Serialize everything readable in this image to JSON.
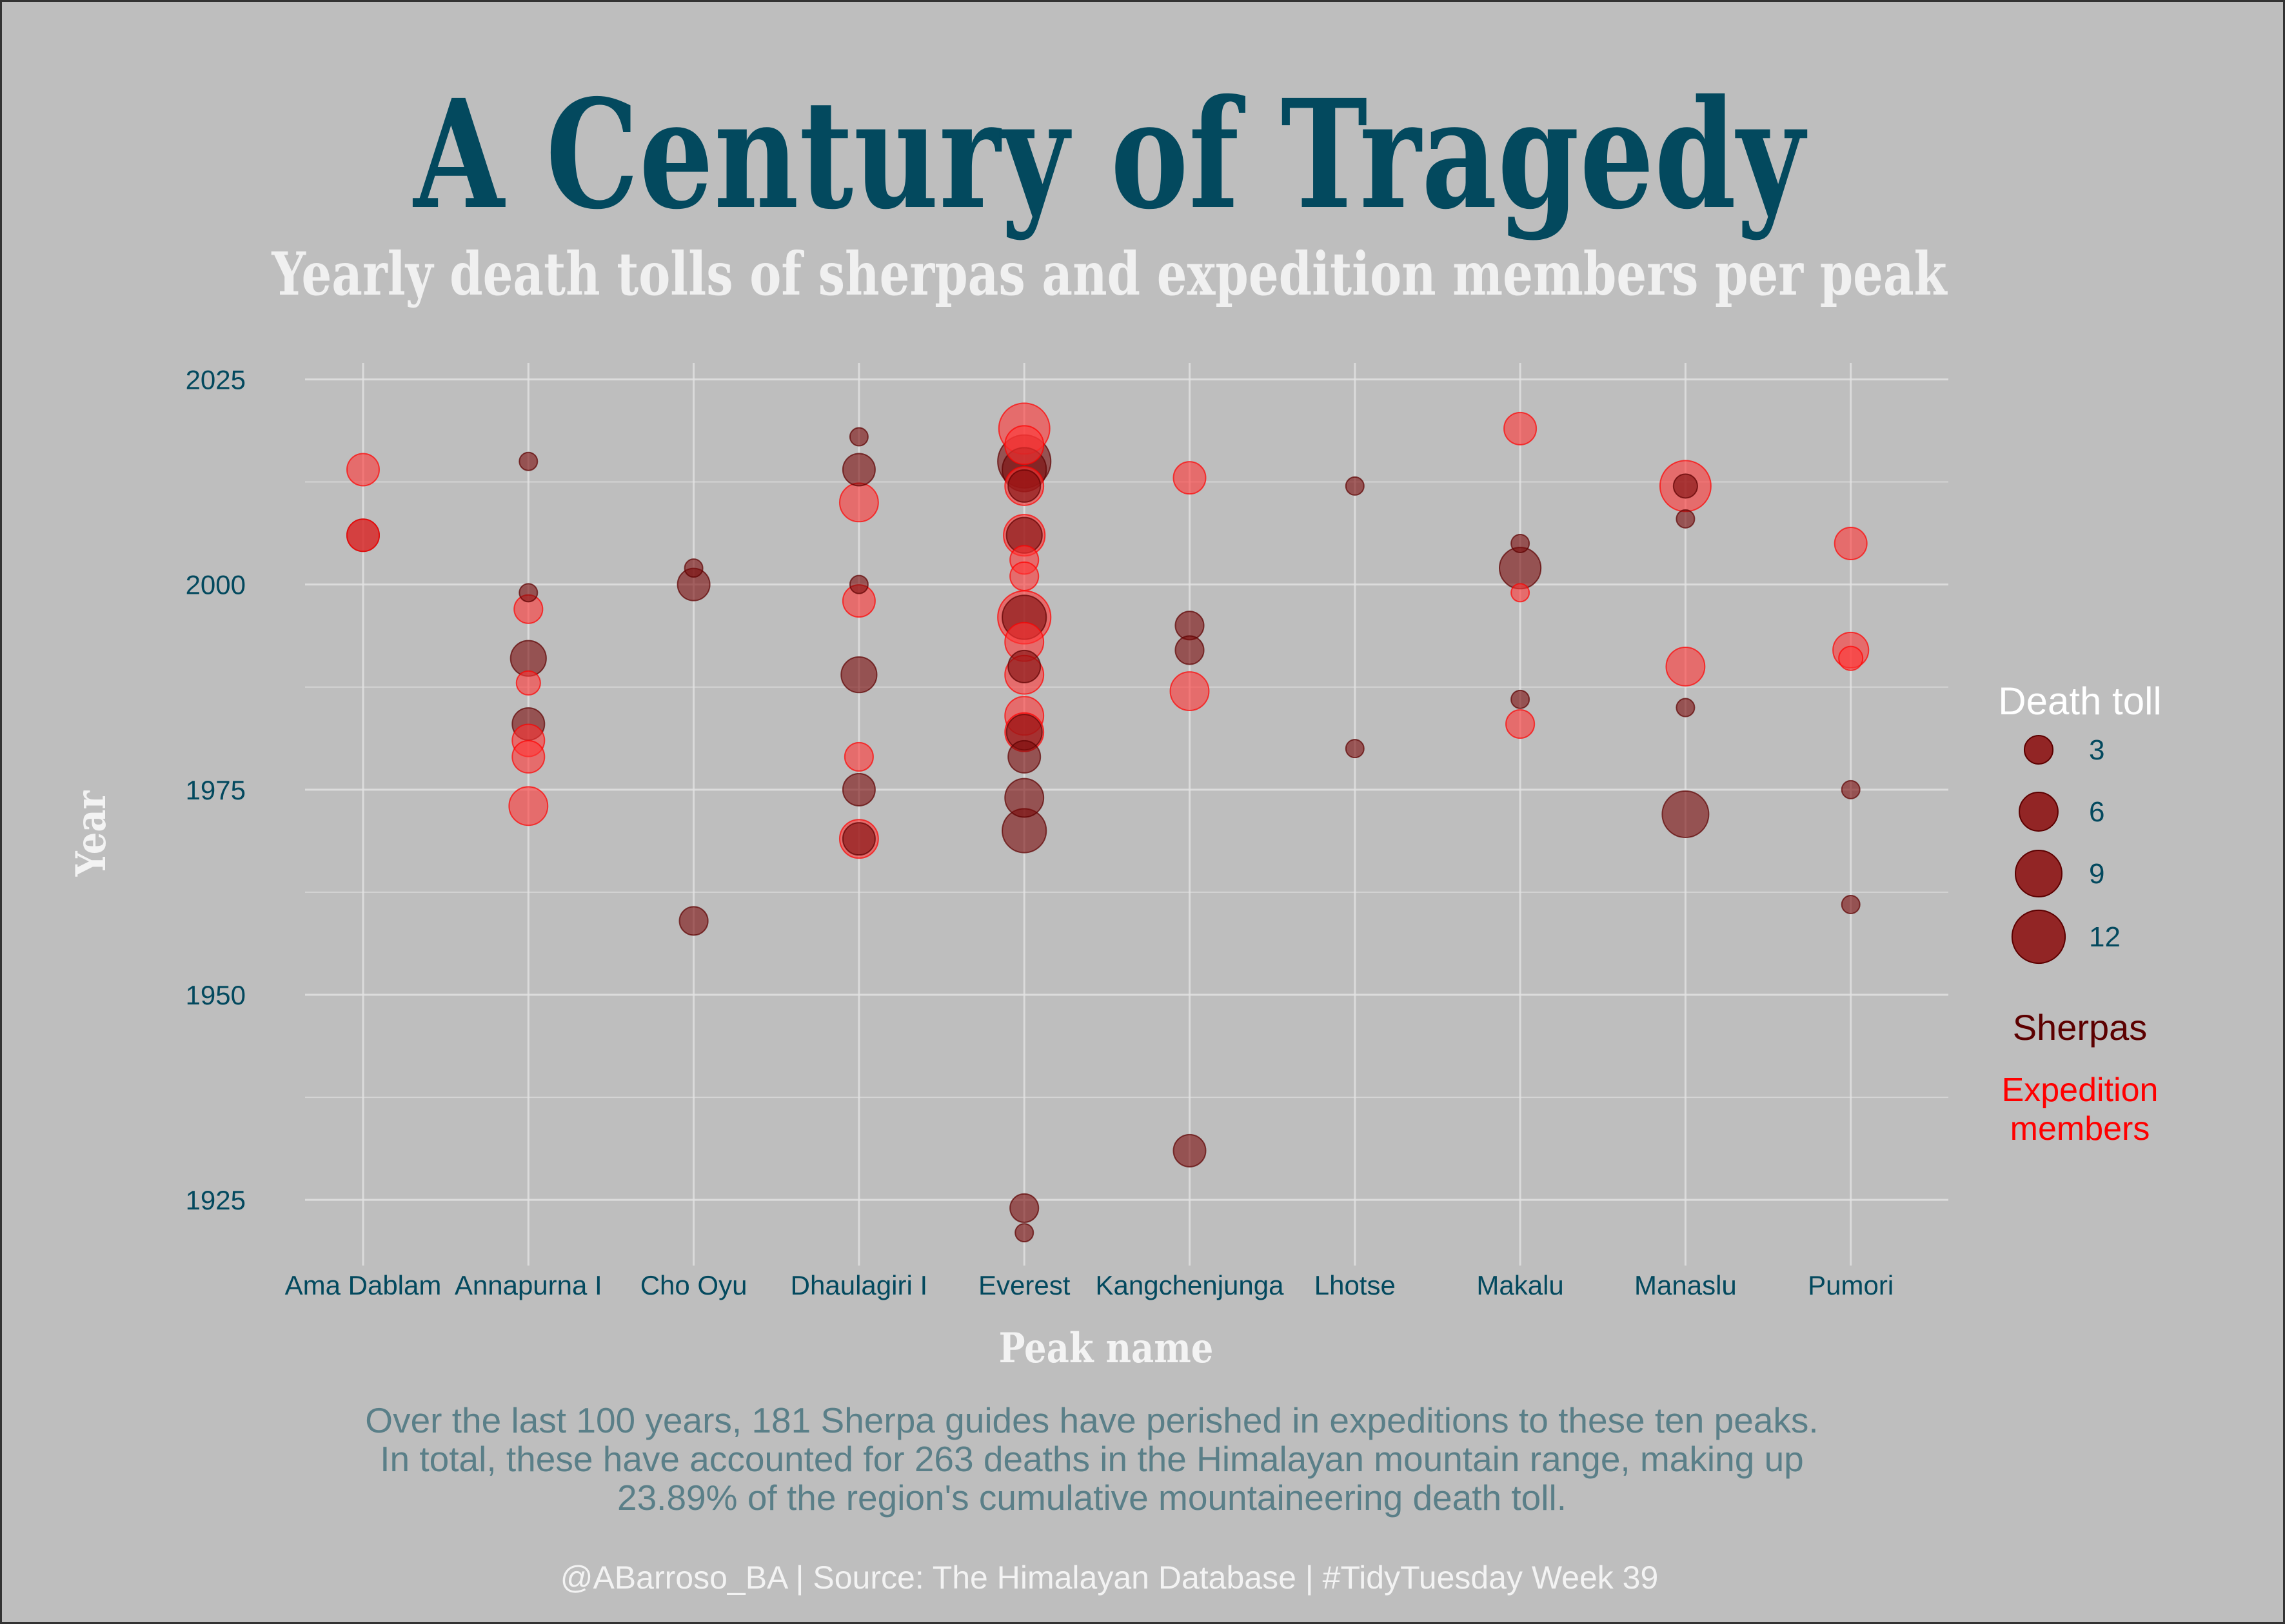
{
  "title": "A Century of Tragedy",
  "subtitle": "Yearly death tolls of sherpas and expedition members per peak",
  "caption": "Over the last 100 years, 181 Sherpa guides have perished in expeditions to these ten peaks. In total, these have accounted for 263 deaths in the Himalayan mountain range, making up 23.89% of the region's cumulative mountaineering death toll.",
  "credit": "@ABarroso_BA | Source: The Himalayan Database | #TidyTuesday Week 39",
  "colors": {
    "sherpa": "#5c0000",
    "sherpa_fill": "#7a0a0a",
    "expedition": "#ff0000",
    "expedition_fill": "#ff3535",
    "title": "#03495e",
    "background": "#bebebe"
  },
  "chart_data": {
    "type": "scatter",
    "xlabel": "Peak name",
    "ylabel": "Year",
    "categories": [
      "Ama Dablam",
      "Annapurna I",
      "Cho Oyu",
      "Dhaulagiri I",
      "Everest",
      "Kangchenjunga",
      "Lhotse",
      "Makalu",
      "Manaslu",
      "Pumori"
    ],
    "y_ticks": [
      1925,
      1950,
      1975,
      2000,
      2025
    ],
    "ylim": [
      1917,
      2027
    ],
    "grid": true,
    "legend": {
      "title": "Death toll",
      "sizes": [
        3,
        6,
        9,
        12
      ],
      "series_labels": [
        "Sherpas",
        "Expedition members"
      ],
      "placement": "right"
    },
    "series": [
      {
        "name": "Sherpas",
        "points": [
          {
            "peak": "Ama Dablam",
            "year": 2006,
            "deaths": 4
          },
          {
            "peak": "Annapurna I",
            "year": 1991,
            "deaths": 5
          },
          {
            "peak": "Annapurna I",
            "year": 1983,
            "deaths": 4
          },
          {
            "peak": "Annapurna I",
            "year": 1999,
            "deaths": 1
          },
          {
            "peak": "Annapurna I",
            "year": 2015,
            "deaths": 1
          },
          {
            "peak": "Cho Oyu",
            "year": 2000,
            "deaths": 4
          },
          {
            "peak": "Cho Oyu",
            "year": 1959,
            "deaths": 3
          },
          {
            "peak": "Cho Oyu",
            "year": 2002,
            "deaths": 1
          },
          {
            "peak": "Dhaulagiri I",
            "year": 2014,
            "deaths": 4
          },
          {
            "peak": "Dhaulagiri I",
            "year": 1989,
            "deaths": 5
          },
          {
            "peak": "Dhaulagiri I",
            "year": 1975,
            "deaths": 4
          },
          {
            "peak": "Dhaulagiri I",
            "year": 1969,
            "deaths": 4
          },
          {
            "peak": "Dhaulagiri I",
            "year": 2000,
            "deaths": 1
          },
          {
            "peak": "Dhaulagiri I",
            "year": 2018,
            "deaths": 1
          },
          {
            "peak": "Everest",
            "year": 2015,
            "deaths": 12
          },
          {
            "peak": "Everest",
            "year": 2014,
            "deaths": 8
          },
          {
            "peak": "Everest",
            "year": 2012,
            "deaths": 4
          },
          {
            "peak": "Everest",
            "year": 2006,
            "deaths": 5
          },
          {
            "peak": "Everest",
            "year": 1996,
            "deaths": 8
          },
          {
            "peak": "Everest",
            "year": 1990,
            "deaths": 4
          },
          {
            "peak": "Everest",
            "year": 1982,
            "deaths": 5
          },
          {
            "peak": "Everest",
            "year": 1979,
            "deaths": 4
          },
          {
            "peak": "Everest",
            "year": 1974,
            "deaths": 6
          },
          {
            "peak": "Everest",
            "year": 1970,
            "deaths": 8
          },
          {
            "peak": "Everest",
            "year": 1924,
            "deaths": 3
          },
          {
            "peak": "Everest",
            "year": 1921,
            "deaths": 1
          },
          {
            "peak": "Kangchenjunga",
            "year": 1995,
            "deaths": 3
          },
          {
            "peak": "Kangchenjunga",
            "year": 1992,
            "deaths": 3
          },
          {
            "peak": "Kangchenjunga",
            "year": 1931,
            "deaths": 4
          },
          {
            "peak": "Lhotse",
            "year": 2012,
            "deaths": 1
          },
          {
            "peak": "Lhotse",
            "year": 1980,
            "deaths": 1
          },
          {
            "peak": "Makalu",
            "year": 2002,
            "deaths": 7
          },
          {
            "peak": "Makalu",
            "year": 2005,
            "deaths": 1
          },
          {
            "peak": "Makalu",
            "year": 1986,
            "deaths": 1
          },
          {
            "peak": "Manaslu",
            "year": 1972,
            "deaths": 9
          },
          {
            "peak": "Manaslu",
            "year": 2012,
            "deaths": 2
          },
          {
            "peak": "Manaslu",
            "year": 2008,
            "deaths": 1
          },
          {
            "peak": "Manaslu",
            "year": 1985,
            "deaths": 1
          },
          {
            "peak": "Pumori",
            "year": 1975,
            "deaths": 1
          },
          {
            "peak": "Pumori",
            "year": 1961,
            "deaths": 1
          }
        ]
      },
      {
        "name": "Expedition members",
        "points": [
          {
            "peak": "Ama Dablam",
            "year": 2014,
            "deaths": 4
          },
          {
            "peak": "Ama Dablam",
            "year": 2006,
            "deaths": 4
          },
          {
            "peak": "Annapurna I",
            "year": 1997,
            "deaths": 3
          },
          {
            "peak": "Annapurna I",
            "year": 1988,
            "deaths": 2
          },
          {
            "peak": "Annapurna I",
            "year": 1981,
            "deaths": 4
          },
          {
            "peak": "Annapurna I",
            "year": 1979,
            "deaths": 4
          },
          {
            "peak": "Annapurna I",
            "year": 1973,
            "deaths": 6
          },
          {
            "peak": "Dhaulagiri I",
            "year": 2010,
            "deaths": 6
          },
          {
            "peak": "Dhaulagiri I",
            "year": 1998,
            "deaths": 4
          },
          {
            "peak": "Dhaulagiri I",
            "year": 1979,
            "deaths": 3
          },
          {
            "peak": "Dhaulagiri I",
            "year": 1969,
            "deaths": 6
          },
          {
            "peak": "Everest",
            "year": 2019,
            "deaths": 11
          },
          {
            "peak": "Everest",
            "year": 2017,
            "deaths": 6
          },
          {
            "peak": "Everest",
            "year": 2012,
            "deaths": 6
          },
          {
            "peak": "Everest",
            "year": 2006,
            "deaths": 7
          },
          {
            "peak": "Everest",
            "year": 2003,
            "deaths": 3
          },
          {
            "peak": "Everest",
            "year": 2001,
            "deaths": 3
          },
          {
            "peak": "Everest",
            "year": 1996,
            "deaths": 12
          },
          {
            "peak": "Everest",
            "year": 1993,
            "deaths": 6
          },
          {
            "peak": "Everest",
            "year": 1989,
            "deaths": 6
          },
          {
            "peak": "Everest",
            "year": 1984,
            "deaths": 6
          },
          {
            "peak": "Everest",
            "year": 1982,
            "deaths": 6
          },
          {
            "peak": "Kangchenjunga",
            "year": 2013,
            "deaths": 4
          },
          {
            "peak": "Kangchenjunga",
            "year": 1987,
            "deaths": 6
          },
          {
            "peak": "Makalu",
            "year": 2019,
            "deaths": 4
          },
          {
            "peak": "Makalu",
            "year": 1999,
            "deaths": 1
          },
          {
            "peak": "Makalu",
            "year": 1983,
            "deaths": 3
          },
          {
            "peak": "Manaslu",
            "year": 2012,
            "deaths": 11
          },
          {
            "peak": "Manaslu",
            "year": 1990,
            "deaths": 6
          },
          {
            "peak": "Pumori",
            "year": 2005,
            "deaths": 4
          },
          {
            "peak": "Pumori",
            "year": 1992,
            "deaths": 5
          },
          {
            "peak": "Pumori",
            "year": 1991,
            "deaths": 2
          }
        ]
      }
    ]
  }
}
